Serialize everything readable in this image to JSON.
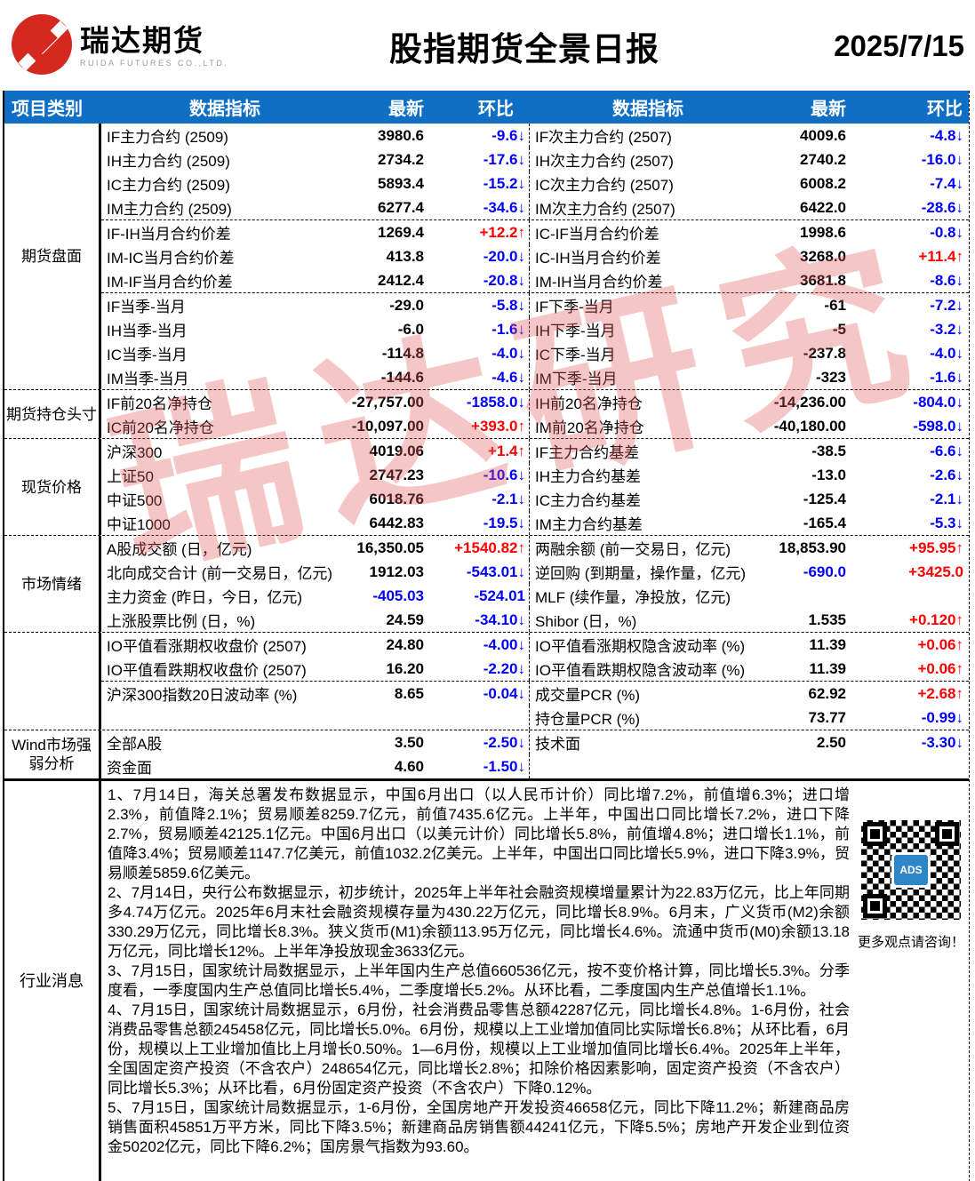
{
  "header": {
    "logo_cn": "瑞达期货",
    "logo_en": "RUIDA FUTURES CO.,LTD.",
    "title": "股指期货全景日报",
    "date": "2025/7/15"
  },
  "colors": {
    "header_bg": "#0e6fc4",
    "up_red": "#ff0000",
    "down_blue": "#0000ff",
    "logo_red": "#d5281e",
    "watermark_red": "#e25858"
  },
  "watermark_text": "瑞达研究",
  "table": {
    "columns": [
      "项目类别",
      "数据指标",
      "最新",
      "环比",
      "数据指标",
      "最新",
      "环比"
    ],
    "sections": [
      {
        "category": "期货盘面",
        "dividers": [
          4,
          7
        ],
        "rows": [
          {
            "l": {
              "t": "IF主力合约 (2509)",
              "v": "3980.6",
              "vc": "k",
              "c": "-9.6↓",
              "cc": "b"
            },
            "r": {
              "t": "IF次主力合约 (2507)",
              "v": "4009.6",
              "vc": "k",
              "c": "-4.8↓",
              "cc": "b"
            }
          },
          {
            "l": {
              "t": "IH主力合约 (2509)",
              "v": "2734.2",
              "vc": "k",
              "c": "-17.6↓",
              "cc": "b"
            },
            "r": {
              "t": "IH次主力合约 (2507)",
              "v": "2740.2",
              "vc": "k",
              "c": "-16.0↓",
              "cc": "b"
            }
          },
          {
            "l": {
              "t": "IC主力合约 (2509)",
              "v": "5893.4",
              "vc": "k",
              "c": "-15.2↓",
              "cc": "b"
            },
            "r": {
              "t": "IC次主力合约 (2507)",
              "v": "6008.2",
              "vc": "k",
              "c": "-7.4↓",
              "cc": "b"
            }
          },
          {
            "l": {
              "t": "IM主力合约 (2509)",
              "v": "6277.4",
              "vc": "k",
              "c": "-34.6↓",
              "cc": "b"
            },
            "r": {
              "t": "IM次主力合约 (2507)",
              "v": "6422.0",
              "vc": "k",
              "c": "-28.6↓",
              "cc": "b"
            }
          },
          {
            "l": {
              "t": "IF-IH当月合约价差",
              "v": "1269.4",
              "vc": "k",
              "c": "+12.2↑",
              "cc": "r"
            },
            "r": {
              "t": "IC-IF当月合约价差",
              "v": "1998.6",
              "vc": "k",
              "c": "-0.8↓",
              "cc": "b"
            }
          },
          {
            "l": {
              "t": "IM-IC当月合约价差",
              "v": "413.8",
              "vc": "k",
              "c": "-20.0↓",
              "cc": "b"
            },
            "r": {
              "t": "IC-IH当月合约价差",
              "v": "3268.0",
              "vc": "k",
              "c": "+11.4↑",
              "cc": "r"
            }
          },
          {
            "l": {
              "t": "IM-IF当月合约价差",
              "v": "2412.4",
              "vc": "k",
              "c": "-20.8↓",
              "cc": "b"
            },
            "r": {
              "t": "IM-IH当月合约价差",
              "v": "3681.8",
              "vc": "k",
              "c": "-8.6↓",
              "cc": "b"
            }
          },
          {
            "l": {
              "t": "IF当季-当月",
              "v": "-29.0",
              "vc": "k",
              "c": "-5.8↓",
              "cc": "b"
            },
            "r": {
              "t": "IF下季-当月",
              "v": "-61",
              "vc": "k",
              "c": "-7.2↓",
              "cc": "b"
            }
          },
          {
            "l": {
              "t": "IH当季-当月",
              "v": "-6.0",
              "vc": "k",
              "c": "-1.6↓",
              "cc": "b"
            },
            "r": {
              "t": "IH下季-当月",
              "v": "-5",
              "vc": "k",
              "c": "-3.2↓",
              "cc": "b"
            }
          },
          {
            "l": {
              "t": "IC当季-当月",
              "v": "-114.8",
              "vc": "k",
              "c": "-4.0↓",
              "cc": "b"
            },
            "r": {
              "t": "IC下季-当月",
              "v": "-237.8",
              "vc": "k",
              "c": "-4.0↓",
              "cc": "b"
            }
          },
          {
            "l": {
              "t": "IM当季-当月",
              "v": "-144.6",
              "vc": "k",
              "c": "-4.6↓",
              "cc": "b"
            },
            "r": {
              "t": "IM下季-当月",
              "v": "-323",
              "vc": "k",
              "c": "-1.6↓",
              "cc": "b"
            }
          }
        ]
      },
      {
        "category": "期货持仓头寸",
        "rows": [
          {
            "l": {
              "t": "IF前20名净持仓",
              "v": "-27,757.00",
              "vc": "k",
              "c": "-1858.0↓",
              "cc": "b"
            },
            "r": {
              "t": "IH前20名净持仓",
              "v": "-14,236.00",
              "vc": "k",
              "c": "-804.0↓",
              "cc": "b"
            }
          },
          {
            "l": {
              "t": "IC前20名净持仓",
              "v": "-10,097.00",
              "vc": "k",
              "c": "+393.0↑",
              "cc": "r"
            },
            "r": {
              "t": "IM前20名净持仓",
              "v": "-40,180.00",
              "vc": "k",
              "c": "-598.0↓",
              "cc": "b"
            }
          }
        ]
      },
      {
        "category": "现货价格",
        "rows": [
          {
            "l": {
              "t": "沪深300",
              "v": "4019.06",
              "vc": "k",
              "c": "+1.4↑",
              "cc": "r"
            },
            "r": {
              "t": "IF主力合约基差",
              "v": "-38.5",
              "vc": "k",
              "c": "-6.6↓",
              "cc": "b"
            }
          },
          {
            "l": {
              "t": "上证50",
              "v": "2747.23",
              "vc": "k",
              "c": "-10.6↓",
              "cc": "b"
            },
            "r": {
              "t": "IH主力合约基差",
              "v": "-13.0",
              "vc": "k",
              "c": "-2.6↓",
              "cc": "b"
            }
          },
          {
            "l": {
              "t": "中证500",
              "v": "6018.76",
              "vc": "k",
              "c": "-2.1↓",
              "cc": "b"
            },
            "r": {
              "t": "IC主力合约基差",
              "v": "-125.4",
              "vc": "k",
              "c": "-2.1↓",
              "cc": "b"
            }
          },
          {
            "l": {
              "t": "中证1000",
              "v": "6442.83",
              "vc": "k",
              "c": "-19.5↓",
              "cc": "b"
            },
            "r": {
              "t": "IM主力合约基差",
              "v": "-165.4",
              "vc": "k",
              "c": "-5.3↓",
              "cc": "b"
            }
          }
        ]
      },
      {
        "category": "市场情绪",
        "rows": [
          {
            "l": {
              "t": "A股成交额 (日，亿元)",
              "v": "16,350.05",
              "vc": "k",
              "c": "+1540.82↑",
              "cc": "r"
            },
            "r": {
              "t": "两融余额 (前一交易日，亿元)",
              "v": "18,853.90",
              "vc": "k",
              "c": "+95.95↑",
              "cc": "r"
            }
          },
          {
            "l": {
              "t": "北向成交合计 (前一交易日，亿元)",
              "v": "1912.03",
              "vc": "k",
              "c": "-543.01↓",
              "cc": "b"
            },
            "r": {
              "t": "逆回购 (到期量，操作量，亿元)",
              "v": "-690.0",
              "vc": "b",
              "c": "+3425.0",
              "cc": "r"
            }
          },
          {
            "l": {
              "t": "主力资金 (昨日，今日，亿元)",
              "v": "-405.03",
              "vc": "b",
              "c": "-524.01",
              "cc": "b"
            },
            "r": {
              "t": "MLF (续作量，净投放，亿元)",
              "v": "",
              "vc": "k",
              "c": "",
              "cc": "k"
            }
          },
          {
            "l": {
              "t": "上涨股票比例 (日，%)",
              "v": "24.59",
              "vc": "k",
              "c": "-34.10↓",
              "cc": "b"
            },
            "r": {
              "t": "Shibor (日，%)",
              "v": "1.535",
              "vc": "k",
              "c": "+0.120↑",
              "cc": "r"
            }
          }
        ]
      },
      {
        "category": "",
        "dividers": [
          2
        ],
        "rows": [
          {
            "l": {
              "t": "IO平值看涨期权收盘价 (2507)",
              "v": "24.80",
              "vc": "k",
              "c": "-4.00↓",
              "cc": "b"
            },
            "r": {
              "t": "IO平值看涨期权隐含波动率 (%)",
              "v": "11.39",
              "vc": "k",
              "c": "+0.06↑",
              "cc": "r"
            }
          },
          {
            "l": {
              "t": "IO平值看跌期权收盘价 (2507)",
              "v": "16.20",
              "vc": "k",
              "c": "-2.20↓",
              "cc": "b"
            },
            "r": {
              "t": "IO平值看跌期权隐含波动率 (%)",
              "v": "11.39",
              "vc": "k",
              "c": "+0.06↑",
              "cc": "r"
            }
          },
          {
            "l": {
              "t": "沪深300指数20日波动率 (%)",
              "v": "8.65",
              "vc": "k",
              "c": "-0.04↓",
              "cc": "b"
            },
            "r": {
              "t": "成交量PCR (%)",
              "v": "62.92",
              "vc": "k",
              "c": "+2.68↑",
              "cc": "r"
            }
          },
          {
            "l": {
              "t": "",
              "v": "",
              "vc": "k",
              "c": "",
              "cc": "k"
            },
            "r": {
              "t": "持仓量PCR (%)",
              "v": "73.77",
              "vc": "k",
              "c": "-0.99↓",
              "cc": "b"
            }
          }
        ]
      },
      {
        "category": "Wind市场强弱分析",
        "rows": [
          {
            "l": {
              "t": "全部A股",
              "v": "3.50",
              "vc": "k",
              "c": "-2.50↓",
              "cc": "b"
            },
            "r": {
              "t": "技术面",
              "v": "2.50",
              "vc": "k",
              "c": "-3.30↓",
              "cc": "b"
            }
          },
          {
            "l": {
              "t": "资金面",
              "v": "4.60",
              "vc": "k",
              "c": "-1.50↓",
              "cc": "b"
            },
            "r": {
              "t": "",
              "v": "",
              "vc": "k",
              "c": "",
              "cc": "k"
            }
          }
        ]
      }
    ]
  },
  "news": {
    "category": "行业消息",
    "paragraphs": [
      "1、7月14日，海关总署发布数据显示，中国6月出口（以人民币计价）同比增7.2%，前值增6.3%；进口增2.3%，前值降2.1%；贸易顺差8259.7亿元，前值7435.6亿元。上半年，中国出口同比增长7.2%，进口下降2.7%，贸易顺差42125.1亿元。中国6月出口（以美元计价）同比增长5.8%，前值增4.8%；进口增长1.1%，前值降3.4%；贸易顺差1147.7亿美元，前值1032.2亿美元。上半年，中国出口同比增长5.9%，进口下降3.9%，贸易顺差5859.6亿美元。",
      "2、7月14日，央行公布数据显示，初步统计，2025年上半年社会融资规模增量累计为22.83万亿元，比上年同期多4.74万亿元。2025年6月末社会融资规模存量为430.22万亿元，同比增长8.9%。6月末，广义货币(M2)余额330.29万亿元，同比增长8.3%。狭义货币(M1)余额113.95万亿元，同比增长4.6%。流通中货币(M0)余额13.18万亿元，同比增长12%。上半年净投放现金3633亿元。",
      "3、7月15日，国家统计局数据显示，上半年国内生产总值660536亿元，按不变价格计算，同比增长5.3%。分季度看，一季度国内生产总值同比增长5.4%，二季度增长5.2%。从环比看，二季度国内生产总值增长1.1%。",
      "4、7月15日，国家统计局数据显示，6月份，社会消费品零售总额42287亿元，同比增长4.8%。1-6月份，社会消费品零售总额245458亿元，同比增长5.0%。6月份，规模以上工业增加值同比实际增长6.8%；从环比看，6月份，规模以上工业增加值比上月增长0.50%。1—6月份，规模以上工业增加值同比增长6.4%。2025年上半年，全国固定资产投资（不含农户）248654亿元，同比增长2.8%；扣除价格因素影响，固定资产投资（不含农户）同比增长5.3%；从环比看，6月份固定资产投资（不含农户）下降0.12%。",
      "5、7月15日，国家统计局数据显示，1-6月份，全国房地产开发投资46658亿元，同比下降11.2%；新建商品房销售面积45851万平方米，同比下降3.5%；新建商品房销售额44241亿元，下降5.5%；房地产开发企业到位资金50202亿元，同比下降6.2%；国房景气指数为93.60。"
    ],
    "qr_logo": "ADS",
    "qr_caption": "更多观点请咨询！"
  }
}
